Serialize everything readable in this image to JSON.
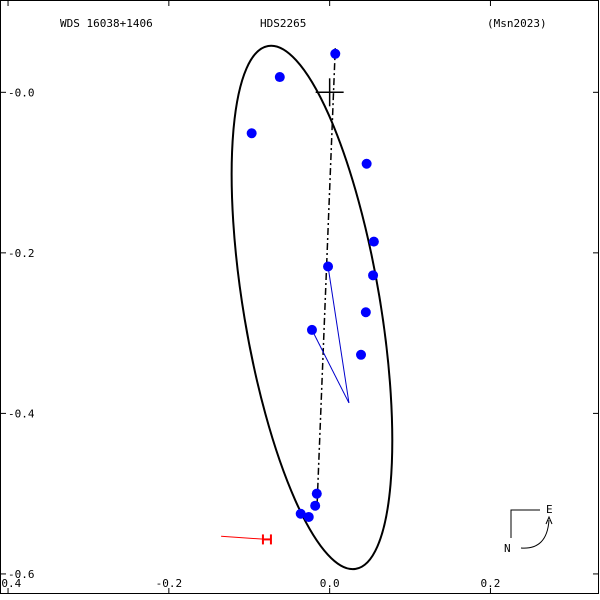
{
  "header": {
    "left": "WDS 16038+1406",
    "center": "HDS2265",
    "right": "(Msn2023)"
  },
  "compass": {
    "east": "E",
    "north": "N"
  },
  "chart_data": {
    "type": "scatter",
    "title": "HDS2265",
    "xlabel": "",
    "ylabel": "",
    "xlim": [
      -0.41,
      0.335
    ],
    "ylim": [
      -0.625,
      0.115
    ],
    "x_ticks": [
      -0.4,
      -0.2,
      0.0,
      0.2
    ],
    "x_tick_labels": [
      "-0.4",
      "-0.2",
      "0.0",
      "0.2"
    ],
    "y_ticks": [
      0.0,
      -0.2,
      -0.4,
      -0.6
    ],
    "y_tick_labels": [
      "-0.0",
      "-0.2",
      "-0.4",
      "-0.6"
    ],
    "orbit_ellipse": {
      "center": [
        -0.022,
        -0.268
      ],
      "semi_major": 0.33,
      "semi_minor": 0.085,
      "major_axis_angle_deg": 80.5
    },
    "line_of_nodes": [
      [
        0.007,
        0.055
      ],
      [
        -0.016,
        -0.523
      ]
    ],
    "primary_star": [
      0.0,
      0.0
    ],
    "observations": [
      {
        "x": 0.007,
        "y": 0.048
      },
      {
        "x": -0.062,
        "y": 0.019
      },
      {
        "x": -0.097,
        "y": -0.051
      },
      {
        "x": 0.046,
        "y": -0.089
      },
      {
        "x": 0.055,
        "y": -0.186
      },
      {
        "x": 0.054,
        "y": -0.228
      },
      {
        "x": 0.045,
        "y": -0.274
      },
      {
        "x": 0.039,
        "y": -0.327
      },
      {
        "x": -0.016,
        "y": -0.5
      },
      {
        "x": -0.018,
        "y": -0.515
      },
      {
        "x": -0.026,
        "y": -0.529
      },
      {
        "x": -0.036,
        "y": -0.525
      }
    ],
    "residual_points": [
      {
        "x": -0.002,
        "y": -0.217
      },
      {
        "x": -0.022,
        "y": -0.296
      }
    ],
    "residual_anchor": [
      0.024,
      -0.387
    ],
    "red_measure": {
      "from": [
        -0.135,
        -0.553
      ],
      "to": [
        -0.078,
        -0.557
      ]
    },
    "colors": {
      "obs": "#0000ff",
      "residual": "#0000cc",
      "red": "#ff0000",
      "orbit": "#000000"
    }
  }
}
